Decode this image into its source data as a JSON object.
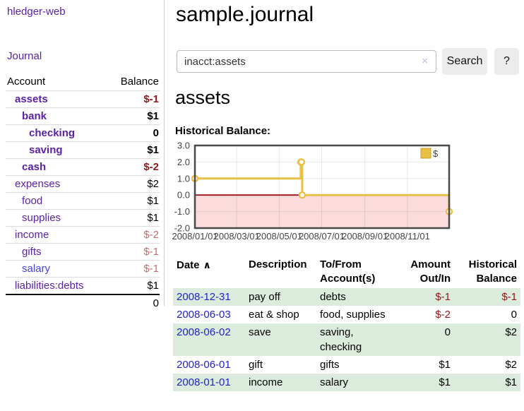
{
  "app": {
    "brand": "hledger-web",
    "nav_journal": "Journal",
    "title": "sample.journal"
  },
  "search": {
    "value": "inacct:assets",
    "clear_icon": "×",
    "button_label": "Search",
    "help_label": "?"
  },
  "sidebar_accounts": {
    "headers": {
      "account": "Account",
      "balance": "Balance"
    },
    "rows": [
      {
        "name": "assets",
        "balance": "$-1",
        "level": 1,
        "bold": true,
        "neg": "strong"
      },
      {
        "name": "bank",
        "balance": "$1",
        "level": 2,
        "bold": true
      },
      {
        "name": "checking",
        "balance": "0",
        "level": 3,
        "bold": true
      },
      {
        "name": "saving",
        "balance": "$1",
        "level": 3,
        "bold": true
      },
      {
        "name": "cash",
        "balance": "$-2",
        "level": 2,
        "bold": true,
        "neg": "strong"
      },
      {
        "name": "expenses",
        "balance": "$2",
        "level": 1
      },
      {
        "name": "food",
        "balance": "$1",
        "level": 2
      },
      {
        "name": "supplies",
        "balance": "$1",
        "level": 2
      },
      {
        "name": "income",
        "balance": "$-2",
        "level": 1,
        "neg": "soft"
      },
      {
        "name": "gifts",
        "balance": "$-1",
        "level": 2,
        "neg": "soft"
      },
      {
        "name": "salary",
        "balance": "$-1",
        "level": 2,
        "neg": "soft",
        "link_blue": true
      },
      {
        "name": "liabilities:debts",
        "balance": "$1",
        "level": 1
      }
    ],
    "total": "0"
  },
  "account_page": {
    "heading": "assets",
    "chart_label": "Historical Balance:"
  },
  "chart_data": {
    "type": "line",
    "title": "assets historical balance",
    "series": [
      {
        "name": "$",
        "color": "#e9bf45",
        "steps": true,
        "points": [
          [
            "2008-01-01",
            1
          ],
          [
            "2008-06-01",
            2
          ],
          [
            "2008-06-02",
            2
          ],
          [
            "2008-06-03",
            0
          ],
          [
            "2008-12-31",
            -1
          ]
        ]
      }
    ],
    "xlim": [
      "2008-01-01",
      "2008-12-31"
    ],
    "ylim": [
      -2,
      3
    ],
    "y_ticks": [
      3,
      2,
      1,
      0,
      -1,
      -2
    ],
    "x_ticks": [
      {
        "label": "2008/01/01",
        "date": "2008-01-01"
      },
      {
        "label": "2008/03/01",
        "date": "2008-03-01"
      },
      {
        "label": "2008/05/01",
        "date": "2008-05-01"
      },
      {
        "label": "2008/07/01",
        "date": "2008-07-01"
      },
      {
        "label": "2008/09/01",
        "date": "2008-09-01"
      },
      {
        "label": "2008/11/01",
        "date": "2008-11-01"
      }
    ],
    "legend": {
      "label": "$",
      "position": "top-right",
      "swatch_color": "#e9c044",
      "swatch_border": "#c7a22b"
    },
    "grid": true,
    "zero_line_color": "#9b1313",
    "negative_region_color": "#fbdbdb",
    "border_color": "#4a4a4a"
  },
  "register_table": {
    "headers": {
      "date": "Date",
      "sort_icon": "∧",
      "description": "Description",
      "tofrom": "To/From Account(s)",
      "amount": "Amount Out/In",
      "balance": "Historical Balance"
    },
    "rows": [
      {
        "date": "2008-12-31",
        "description": "pay off",
        "tofrom": "debts",
        "amount": "$-1",
        "balance": "$-1",
        "amount_neg": true,
        "balance_neg": true
      },
      {
        "date": "2008-06-03",
        "description": "eat & shop",
        "tofrom": "food, supplies",
        "amount": "$-2",
        "balance": "0",
        "amount_neg": true
      },
      {
        "date": "2008-06-02",
        "description": "save",
        "tofrom": "saving,\nchecking",
        "amount": "0",
        "balance": "$2"
      },
      {
        "date": "2008-06-01",
        "description": "gift",
        "tofrom": "gifts",
        "amount": "$1",
        "balance": "$2"
      },
      {
        "date": "2008-01-01",
        "description": "income",
        "tofrom": "salary",
        "amount": "$1",
        "balance": "$1"
      }
    ]
  },
  "colors": {
    "accent_purple": "#5b21a6",
    "link_blue": "#2222cc",
    "negative_red": "#921717",
    "negative_soft_red": "#c06f6f",
    "row_stripe_green": "#dcecdc",
    "series_gold": "#e9bf45"
  }
}
